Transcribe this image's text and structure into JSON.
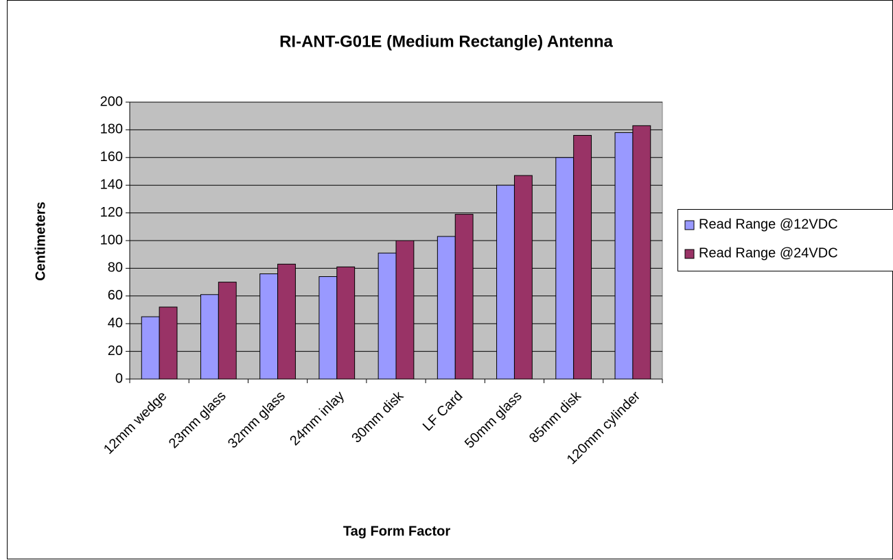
{
  "chart_data": {
    "type": "bar",
    "title": "RI-ANT-G01E (Medium Rectangle) Antenna",
    "x_label": "Tag Form Factor",
    "y_label": "Centimeters",
    "categories": [
      "12mm wedge",
      "23mm glass",
      "32mm glass",
      "24mm inlay",
      "30mm disk",
      "LF Card",
      "50mm glass",
      "85mm disk",
      "120mm cylinder"
    ],
    "series": [
      {
        "name": "Read Range @12VDC",
        "color": "#9999ff",
        "values": [
          45,
          61,
          76,
          74,
          91,
          103,
          140,
          160,
          178
        ]
      },
      {
        "name": "Read Range @24VDC",
        "color": "#993366",
        "values": [
          52,
          70,
          83,
          81,
          100,
          119,
          147,
          176,
          183
        ]
      }
    ],
    "ylim": [
      0,
      200
    ],
    "yticks": [
      0,
      20,
      40,
      60,
      80,
      100,
      120,
      140,
      160,
      180,
      200
    ],
    "grid": true,
    "legend": "right"
  }
}
